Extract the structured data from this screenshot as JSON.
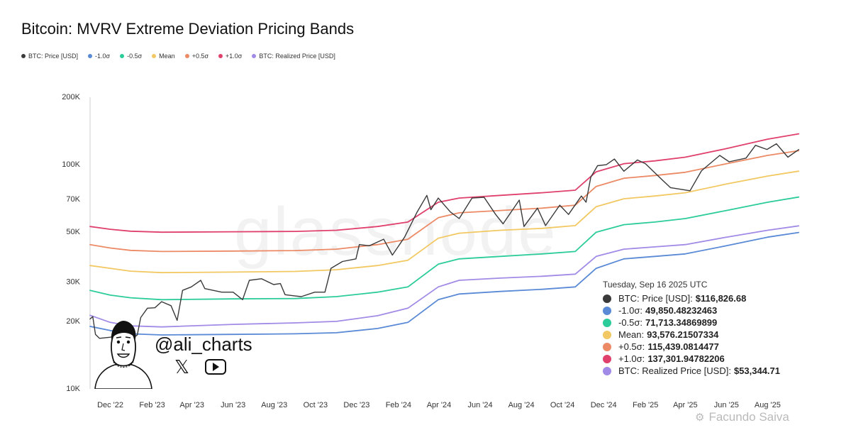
{
  "chart_data": {
    "type": "line",
    "title": "Bitcoin: MVRV Extreme Deviation Pricing Bands",
    "y_scale": "log",
    "ylim": [
      10000,
      200000
    ],
    "y_ticks": [
      {
        "value": 10000,
        "label": "10K"
      },
      {
        "value": 20000,
        "label": "20K"
      },
      {
        "value": 30000,
        "label": "30K"
      },
      {
        "value": 50000,
        "label": "50K"
      },
      {
        "value": 70000,
        "label": "70K"
      },
      {
        "value": 100000,
        "label": "100K"
      },
      {
        "value": 200000,
        "label": "200K"
      }
    ],
    "xlim": [
      "2022-11-01",
      "2025-09-20"
    ],
    "x_ticks": [
      {
        "date": "2022-12-01",
        "label": "Dec '22"
      },
      {
        "date": "2023-02-01",
        "label": "Feb '23"
      },
      {
        "date": "2023-04-01",
        "label": "Apr '23"
      },
      {
        "date": "2023-06-01",
        "label": "Jun '23"
      },
      {
        "date": "2023-08-01",
        "label": "Aug '23"
      },
      {
        "date": "2023-10-01",
        "label": "Oct '23"
      },
      {
        "date": "2023-12-01",
        "label": "Dec '23"
      },
      {
        "date": "2024-02-01",
        "label": "Feb '24"
      },
      {
        "date": "2024-04-01",
        "label": "Apr '24"
      },
      {
        "date": "2024-06-01",
        "label": "Jun '24"
      },
      {
        "date": "2024-08-01",
        "label": "Aug '24"
      },
      {
        "date": "2024-10-01",
        "label": "Oct '24"
      },
      {
        "date": "2024-12-01",
        "label": "Dec '24"
      },
      {
        "date": "2025-02-01",
        "label": "Feb '25"
      },
      {
        "date": "2025-04-01",
        "label": "Apr '25"
      },
      {
        "date": "2025-06-01",
        "label": "Jun '25"
      },
      {
        "date": "2025-08-01",
        "label": "Aug '25"
      }
    ],
    "legend_position": "top-left",
    "grid": false,
    "series": [
      {
        "name": "BTC: Price [USD]",
        "color": "#3a3a3a",
        "points": [
          [
            "2022-11-01",
            20500
          ],
          [
            "2022-11-05",
            21000
          ],
          [
            "2022-11-09",
            17500
          ],
          [
            "2022-11-15",
            16800
          ],
          [
            "2022-12-01",
            17000
          ],
          [
            "2022-12-15",
            17400
          ],
          [
            "2022-12-31",
            16600
          ],
          [
            "2023-01-10",
            17400
          ],
          [
            "2023-01-15",
            20800
          ],
          [
            "2023-01-25",
            22900
          ],
          [
            "2023-02-05",
            23000
          ],
          [
            "2023-02-15",
            24500
          ],
          [
            "2023-03-01",
            23500
          ],
          [
            "2023-03-10",
            20200
          ],
          [
            "2023-03-18",
            27500
          ],
          [
            "2023-03-31",
            28500
          ],
          [
            "2023-04-14",
            30500
          ],
          [
            "2023-04-20",
            28000
          ],
          [
            "2023-05-15",
            27000
          ],
          [
            "2023-06-01",
            27000
          ],
          [
            "2023-06-15",
            25000
          ],
          [
            "2023-06-25",
            30500
          ],
          [
            "2023-07-13",
            31000
          ],
          [
            "2023-07-31",
            29200
          ],
          [
            "2023-08-10",
            29500
          ],
          [
            "2023-08-17",
            26300
          ],
          [
            "2023-08-31",
            26000
          ],
          [
            "2023-09-10",
            25800
          ],
          [
            "2023-09-30",
            27000
          ],
          [
            "2023-10-15",
            27000
          ],
          [
            "2023-10-24",
            34500
          ],
          [
            "2023-11-10",
            37000
          ],
          [
            "2023-11-30",
            38000
          ],
          [
            "2023-12-05",
            44000
          ],
          [
            "2023-12-20",
            43500
          ],
          [
            "2024-01-10",
            46500
          ],
          [
            "2024-01-23",
            39500
          ],
          [
            "2024-02-10",
            47500
          ],
          [
            "2024-02-28",
            61000
          ],
          [
            "2024-03-14",
            73000
          ],
          [
            "2024-03-20",
            63000
          ],
          [
            "2024-03-31",
            71000
          ],
          [
            "2024-04-18",
            61500
          ],
          [
            "2024-05-01",
            57500
          ],
          [
            "2024-05-20",
            71000
          ],
          [
            "2024-06-07",
            71500
          ],
          [
            "2024-06-24",
            60000
          ],
          [
            "2024-07-05",
            54500
          ],
          [
            "2024-07-29",
            69500
          ],
          [
            "2024-08-05",
            53000
          ],
          [
            "2024-08-25",
            64000
          ],
          [
            "2024-09-06",
            53500
          ],
          [
            "2024-09-27",
            66000
          ],
          [
            "2024-10-10",
            60000
          ],
          [
            "2024-10-29",
            72500
          ],
          [
            "2024-11-05",
            68000
          ],
          [
            "2024-11-12",
            88000
          ],
          [
            "2024-11-22",
            99000
          ],
          [
            "2024-12-05",
            100000
          ],
          [
            "2024-12-17",
            106000
          ],
          [
            "2024-12-31",
            93500
          ],
          [
            "2025-01-20",
            105000
          ],
          [
            "2025-02-01",
            101000
          ],
          [
            "2025-02-25",
            86000
          ],
          [
            "2025-03-10",
            79000
          ],
          [
            "2025-04-08",
            76500
          ],
          [
            "2025-04-25",
            94000
          ],
          [
            "2025-05-22",
            110000
          ],
          [
            "2025-06-05",
            103000
          ],
          [
            "2025-06-30",
            107000
          ],
          [
            "2025-07-14",
            122000
          ],
          [
            "2025-07-31",
            117000
          ],
          [
            "2025-08-14",
            124000
          ],
          [
            "2025-08-31",
            108000
          ],
          [
            "2025-09-16",
            116826.68
          ]
        ]
      },
      {
        "name": "-1.0σ",
        "color": "#5a8ad6",
        "points": [
          [
            "2022-11-01",
            19000
          ],
          [
            "2022-12-01",
            18200
          ],
          [
            "2022-12-31",
            17600
          ],
          [
            "2023-02-15",
            17400
          ],
          [
            "2023-06-01",
            17500
          ],
          [
            "2023-09-01",
            17600
          ],
          [
            "2023-11-01",
            17800
          ],
          [
            "2024-01-01",
            18600
          ],
          [
            "2024-02-15",
            19800
          ],
          [
            "2024-03-31",
            25000
          ],
          [
            "2024-05-01",
            26500
          ],
          [
            "2024-07-01",
            27200
          ],
          [
            "2024-09-01",
            27800
          ],
          [
            "2024-10-20",
            28500
          ],
          [
            "2024-11-20",
            34500
          ],
          [
            "2024-12-31",
            38000
          ],
          [
            "2025-02-15",
            39000
          ],
          [
            "2025-04-01",
            40000
          ],
          [
            "2025-06-01",
            43500
          ],
          [
            "2025-08-01",
            47500
          ],
          [
            "2025-09-16",
            49850.48
          ]
        ]
      },
      {
        "name": "-0.5σ",
        "color": "#2bcc9a",
        "points": [
          [
            "2022-11-01",
            27500
          ],
          [
            "2022-12-01",
            26200
          ],
          [
            "2022-12-31",
            25500
          ],
          [
            "2023-02-15",
            25000
          ],
          [
            "2023-06-01",
            25200
          ],
          [
            "2023-09-01",
            25300
          ],
          [
            "2023-11-01",
            25800
          ],
          [
            "2024-01-01",
            27000
          ],
          [
            "2024-02-15",
            28500
          ],
          [
            "2024-03-31",
            36000
          ],
          [
            "2024-05-01",
            38000
          ],
          [
            "2024-07-01",
            39000
          ],
          [
            "2024-09-01",
            40000
          ],
          [
            "2024-10-20",
            41000
          ],
          [
            "2024-11-20",
            50000
          ],
          [
            "2024-12-31",
            54000
          ],
          [
            "2025-02-15",
            55500
          ],
          [
            "2025-04-01",
            57500
          ],
          [
            "2025-06-01",
            62500
          ],
          [
            "2025-08-01",
            68000
          ],
          [
            "2025-09-16",
            71713.35
          ]
        ]
      },
      {
        "name": "Mean",
        "color": "#f2c862",
        "points": [
          [
            "2022-11-01",
            35500
          ],
          [
            "2022-12-01",
            34500
          ],
          [
            "2022-12-31",
            33500
          ],
          [
            "2023-02-15",
            33000
          ],
          [
            "2023-06-01",
            33200
          ],
          [
            "2023-09-01",
            33400
          ],
          [
            "2023-11-01",
            34000
          ],
          [
            "2024-01-01",
            35500
          ],
          [
            "2024-02-15",
            37500
          ],
          [
            "2024-03-31",
            47000
          ],
          [
            "2024-05-01",
            49500
          ],
          [
            "2024-07-01",
            51000
          ],
          [
            "2024-09-01",
            52000
          ],
          [
            "2024-10-20",
            53500
          ],
          [
            "2024-11-20",
            65000
          ],
          [
            "2024-12-31",
            70500
          ],
          [
            "2025-02-15",
            72500
          ],
          [
            "2025-04-01",
            75000
          ],
          [
            "2025-06-01",
            82000
          ],
          [
            "2025-08-01",
            89000
          ],
          [
            "2025-09-16",
            93576.22
          ]
        ]
      },
      {
        "name": "+0.5σ",
        "color": "#ec8a66",
        "points": [
          [
            "2022-11-01",
            44000
          ],
          [
            "2022-12-01",
            42500
          ],
          [
            "2022-12-31",
            41500
          ],
          [
            "2023-02-15",
            41000
          ],
          [
            "2023-06-01",
            41200
          ],
          [
            "2023-09-01",
            41400
          ],
          [
            "2023-11-01",
            42000
          ],
          [
            "2024-01-01",
            44000
          ],
          [
            "2024-02-15",
            46500
          ],
          [
            "2024-03-31",
            58000
          ],
          [
            "2024-05-01",
            61000
          ],
          [
            "2024-07-01",
            62500
          ],
          [
            "2024-09-01",
            64000
          ],
          [
            "2024-10-20",
            66000
          ],
          [
            "2024-11-20",
            80000
          ],
          [
            "2024-12-31",
            87000
          ],
          [
            "2025-02-15",
            89500
          ],
          [
            "2025-04-01",
            92500
          ],
          [
            "2025-06-01",
            101000
          ],
          [
            "2025-08-01",
            110000
          ],
          [
            "2025-09-16",
            115439.08
          ]
        ]
      },
      {
        "name": "+1.0σ",
        "color": "#e0406c",
        "points": [
          [
            "2022-11-01",
            53000
          ],
          [
            "2022-12-01",
            51500
          ],
          [
            "2022-12-31",
            50500
          ],
          [
            "2023-02-15",
            50000
          ],
          [
            "2023-06-01",
            50200
          ],
          [
            "2023-09-01",
            50400
          ],
          [
            "2023-11-01",
            51000
          ],
          [
            "2024-01-01",
            53000
          ],
          [
            "2024-02-15",
            55500
          ],
          [
            "2024-03-31",
            68000
          ],
          [
            "2024-05-01",
            71000
          ],
          [
            "2024-07-01",
            73000
          ],
          [
            "2024-09-01",
            75000
          ],
          [
            "2024-10-20",
            77000
          ],
          [
            "2024-11-20",
            93000
          ],
          [
            "2024-12-31",
            101000
          ],
          [
            "2025-02-15",
            104000
          ],
          [
            "2025-04-01",
            108000
          ],
          [
            "2025-06-01",
            118000
          ],
          [
            "2025-08-01",
            130000
          ],
          [
            "2025-09-16",
            137301.95
          ]
        ]
      },
      {
        "name": "BTC: Realized Price [USD]",
        "color": "#a18be6",
        "points": [
          [
            "2022-11-01",
            21300
          ],
          [
            "2022-12-01",
            19800
          ],
          [
            "2022-12-31",
            19100
          ],
          [
            "2023-02-15",
            18900
          ],
          [
            "2023-06-01",
            19400
          ],
          [
            "2023-09-01",
            19700
          ],
          [
            "2023-11-01",
            20000
          ],
          [
            "2024-01-01",
            21200
          ],
          [
            "2024-02-15",
            22900
          ],
          [
            "2024-03-31",
            28500
          ],
          [
            "2024-05-01",
            30500
          ],
          [
            "2024-07-01",
            31200
          ],
          [
            "2024-09-01",
            31800
          ],
          [
            "2024-10-20",
            32500
          ],
          [
            "2024-11-20",
            39000
          ],
          [
            "2024-12-31",
            42000
          ],
          [
            "2025-02-15",
            43000
          ],
          [
            "2025-04-01",
            44000
          ],
          [
            "2025-06-01",
            47500
          ],
          [
            "2025-08-01",
            51000
          ],
          [
            "2025-09-16",
            53344.71
          ]
        ]
      }
    ],
    "tooltip": {
      "date": "Tuesday, Sep 16 2025 UTC",
      "rows": [
        {
          "label": "BTC: Price [USD]:",
          "value": "$116,826.68",
          "color": "#3a3a3a"
        },
        {
          "label": "-1.0σ:",
          "value": "49,850.48232463",
          "color": "#5a8ad6"
        },
        {
          "label": "-0.5σ:",
          "value": "71,713.34869899",
          "color": "#2bcc9a"
        },
        {
          "label": "Mean:",
          "value": "93,576.21507334",
          "color": "#f2c862"
        },
        {
          "label": "+0.5σ:",
          "value": "115,439.0814477",
          "color": "#ec8a66"
        },
        {
          "label": "+1.0σ:",
          "value": "137,301.94782206",
          "color": "#e0406c"
        },
        {
          "label": "BTC: Realized Price [USD]:",
          "value": "$53,344.71",
          "color": "#a18be6"
        }
      ]
    }
  },
  "watermark": "glassnode",
  "branding": {
    "handle": "@ali_charts",
    "social_icons": [
      "x-logo-icon",
      "youtube-icon"
    ],
    "credit": "Facundo Saiva"
  }
}
